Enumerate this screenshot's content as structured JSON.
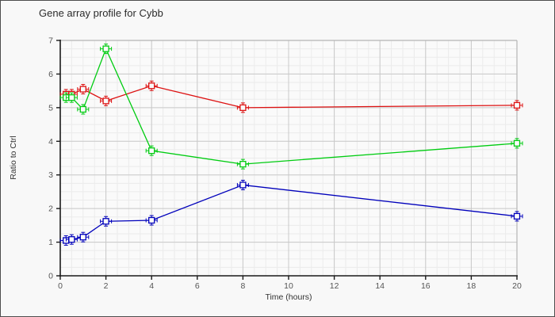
{
  "window": {
    "background": "#f8f8f8",
    "border_color": "#4d4d4d"
  },
  "chart_data": {
    "type": "line",
    "title": "Gene array profile for Cybb",
    "xlabel": "Time (hours)",
    "ylabel": "Ratio to Ctrl",
    "xlim": [
      0,
      20
    ],
    "ylim": [
      0,
      7
    ],
    "x_ticks": [
      0,
      2,
      4,
      6,
      8,
      10,
      12,
      14,
      16,
      18,
      20
    ],
    "y_ticks": [
      0,
      1,
      2,
      3,
      4,
      5,
      6,
      7
    ],
    "x_minor_step": 0.5,
    "y_minor_step": 0.25,
    "grid": true,
    "legend_position": "none",
    "marker": "open-square",
    "error_bars_visible": true,
    "x": [
      0.25,
      0.5,
      1,
      2,
      4,
      8,
      20
    ],
    "series": [
      {
        "name": "series-red",
        "color": "#dd1111",
        "values": [
          5.4,
          5.4,
          5.55,
          5.2,
          5.65,
          5.0,
          5.07
        ]
      },
      {
        "name": "series-green",
        "color": "#00cc11",
        "values": [
          5.3,
          5.3,
          4.95,
          6.75,
          3.72,
          3.32,
          3.94
        ]
      },
      {
        "name": "series-blue",
        "color": "#0000bb",
        "values": [
          1.05,
          1.08,
          1.15,
          1.62,
          1.65,
          2.7,
          1.77
        ]
      }
    ],
    "colors": {
      "axis": "#1a1a1a",
      "major_grid": "#c9c9c9",
      "minor_grid": "#ebebeb",
      "plot_border": "#b5b5b5",
      "tick_label": "#555555",
      "plot_bg": "#fafafa"
    }
  }
}
